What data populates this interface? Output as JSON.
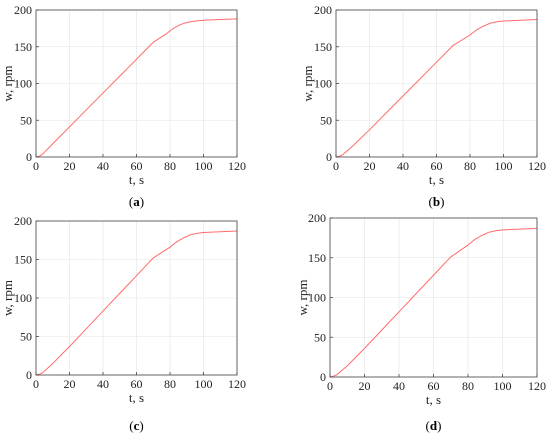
{
  "chart_data": [
    {
      "type": "line",
      "caption": {
        "open": "(",
        "letter": "a",
        "close": ")"
      },
      "xlabel": "t, s",
      "ylabel": "w, rpm",
      "xlim": [
        0,
        120
      ],
      "ylim": [
        0,
        200
      ],
      "xticks": [
        0,
        20,
        40,
        60,
        80,
        100,
        120
      ],
      "yticks": [
        0,
        50,
        100,
        150,
        200
      ],
      "grid": true,
      "line_color": "#ff6b6b",
      "series": [
        {
          "x": [
            0,
            2,
            4,
            10,
            20,
            30,
            40,
            50,
            60,
            70,
            78,
            82,
            86,
            90,
            95,
            100,
            110,
            120
          ],
          "y": [
            0,
            1,
            4,
            18,
            41,
            64,
            87,
            110,
            133,
            156,
            168,
            175,
            180,
            183,
            185,
            186,
            187,
            188
          ]
        }
      ]
    },
    {
      "type": "line",
      "caption": {
        "open": "(",
        "letter": "b",
        "close": ")"
      },
      "xlabel": "t, s",
      "ylabel": "w, rpm",
      "xlim": [
        0,
        120
      ],
      "ylim": [
        0,
        200
      ],
      "xticks": [
        0,
        20,
        40,
        60,
        80,
        100,
        120
      ],
      "yticks": [
        0,
        50,
        100,
        150,
        200
      ],
      "grid": true,
      "line_color": "#ff6b6b",
      "series": [
        {
          "x": [
            0,
            2,
            4,
            10,
            20,
            30,
            40,
            50,
            60,
            70,
            80,
            84,
            88,
            92,
            96,
            100,
            110,
            120
          ],
          "y": [
            0,
            1,
            3,
            15,
            37,
            60,
            83,
            106,
            129,
            152,
            166,
            173,
            178,
            182,
            184,
            185,
            186,
            187
          ]
        }
      ]
    },
    {
      "type": "line",
      "caption": {
        "open": "(",
        "letter": "c",
        "close": ")"
      },
      "xlabel": "t, s",
      "ylabel": "w, rpm",
      "xlim": [
        0,
        120
      ],
      "ylim": [
        0,
        200
      ],
      "xticks": [
        0,
        20,
        40,
        60,
        80,
        100,
        120
      ],
      "yticks": [
        0,
        50,
        100,
        150,
        200
      ],
      "grid": true,
      "line_color": "#ff6b6b",
      "series": [
        {
          "x": [
            0,
            2,
            4,
            10,
            20,
            30,
            40,
            50,
            60,
            70,
            80,
            84,
            88,
            92,
            96,
            100,
            110,
            120
          ],
          "y": [
            0,
            1,
            3,
            15,
            37,
            60,
            83,
            106,
            129,
            152,
            166,
            173,
            178,
            182,
            184,
            185,
            186,
            187
          ]
        }
      ]
    },
    {
      "type": "line",
      "caption": {
        "open": "(",
        "letter": "d",
        "close": ")"
      },
      "xlabel": "t, s",
      "ylabel": "w, rpm",
      "xlim": [
        0,
        120
      ],
      "ylim": [
        0,
        200
      ],
      "xticks": [
        0,
        20,
        40,
        60,
        80,
        100,
        120
      ],
      "yticks": [
        0,
        50,
        100,
        150,
        200
      ],
      "grid": true,
      "line_color": "#ff6b6b",
      "series": [
        {
          "x": [
            0,
            2,
            4,
            10,
            20,
            30,
            40,
            50,
            60,
            70,
            80,
            84,
            88,
            92,
            96,
            100,
            110,
            120
          ],
          "y": [
            0,
            1,
            3,
            14,
            36,
            59,
            82,
            105,
            128,
            151,
            166,
            173,
            178,
            182,
            184,
            185,
            186,
            187
          ]
        }
      ]
    }
  ]
}
